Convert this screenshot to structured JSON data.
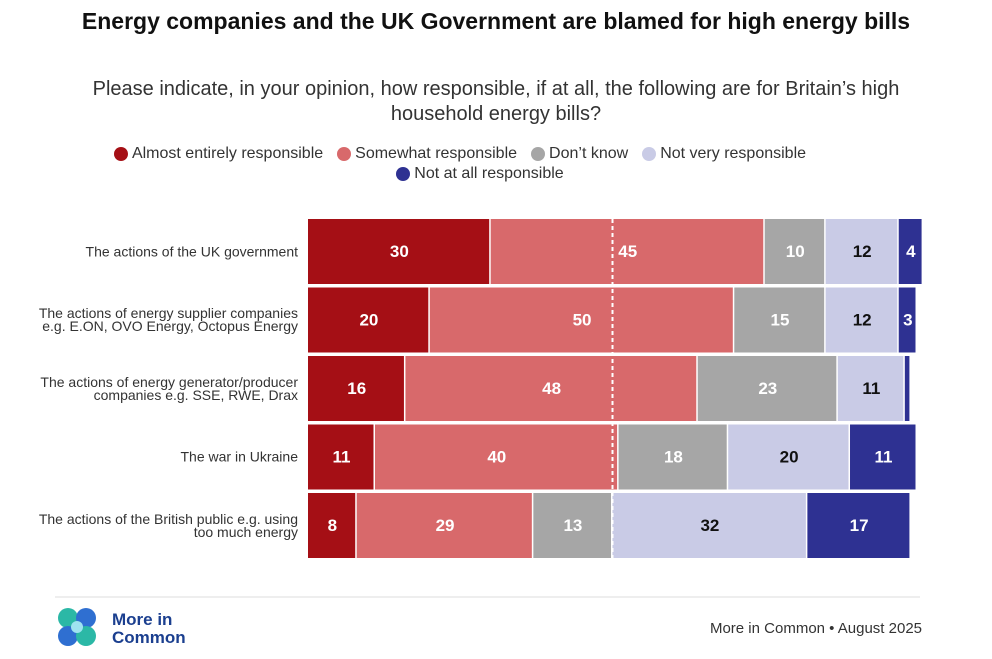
{
  "chart_data": {
    "type": "stacked-bar-horizontal",
    "title": "Energy companies and the UK Government are blamed for high energy bills",
    "subtitle": "Please indicate, in your opinion, how responsible, if at all, the following are for Britain’s high household energy bills?",
    "categories": [
      "The actions of the UK government",
      "The actions of energy supplier companies e.g. E.ON, OVO Energy, Octopus Energy",
      "The actions of energy generator/producer companies e.g. SSE, RWE, Drax",
      "The war in Ukraine",
      "The actions of the British public e.g. using too much energy"
    ],
    "series": [
      {
        "name": "Almost entirely responsible",
        "color": "#a50f15",
        "label_color": "#ffffff",
        "values": [
          30,
          20,
          16,
          11,
          8
        ]
      },
      {
        "name": "Somewhat responsible",
        "color": "#d8696b",
        "label_color": "#ffffff",
        "values": [
          45,
          50,
          48,
          40,
          29
        ]
      },
      {
        "name": "Don’t know",
        "color": "#a6a6a6",
        "label_color": "#ffffff",
        "values": [
          10,
          15,
          23,
          18,
          13
        ]
      },
      {
        "name": "Not very responsible",
        "color": "#c9cbe6",
        "label_color": "#111111",
        "values": [
          12,
          12,
          11,
          20,
          32
        ]
      },
      {
        "name": "Not at all responsible",
        "color": "#2e3192",
        "label_color": "#ffffff",
        "values": [
          4,
          3,
          1,
          11,
          17
        ]
      }
    ],
    "xlim": [
      0,
      100
    ],
    "reference_line": 50,
    "logo_text": "More in Common",
    "source": "More in Common • August 2025"
  }
}
